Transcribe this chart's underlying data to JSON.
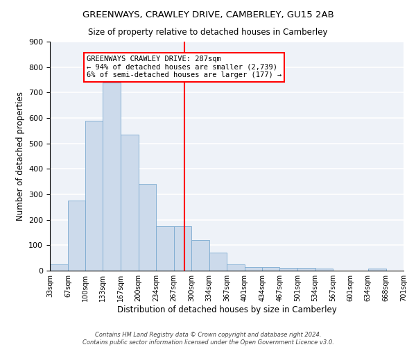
{
  "title": "GREENWAYS, CRAWLEY DRIVE, CAMBERLEY, GU15 2AB",
  "subtitle": "Size of property relative to detached houses in Camberley",
  "xlabel": "Distribution of detached houses by size in Camberley",
  "ylabel": "Number of detached properties",
  "bar_color": "#ccdaeb",
  "bar_edge_color": "#7aaad0",
  "background_color": "#eef2f8",
  "property_size": 287,
  "property_line_color": "red",
  "annotation_line1": "GREENWAYS CRAWLEY DRIVE: 287sqm",
  "annotation_line2": "← 94% of detached houses are smaller (2,739)",
  "annotation_line3": "6% of semi-detached houses are larger (177) →",
  "bin_edges": [
    33,
    67,
    100,
    133,
    167,
    200,
    234,
    267,
    300,
    334,
    367,
    401,
    434,
    467,
    501,
    534,
    567,
    601,
    634,
    668,
    701
  ],
  "bar_heights": [
    25,
    275,
    590,
    740,
    535,
    340,
    175,
    175,
    120,
    70,
    25,
    15,
    15,
    10,
    10,
    8,
    0,
    0,
    8,
    0
  ],
  "ylim": [
    0,
    900
  ],
  "footer_text": "Contains HM Land Registry data © Crown copyright and database right 2024.\nContains public sector information licensed under the Open Government Licence v3.0.",
  "figsize": [
    6.0,
    5.0
  ],
  "dpi": 100
}
